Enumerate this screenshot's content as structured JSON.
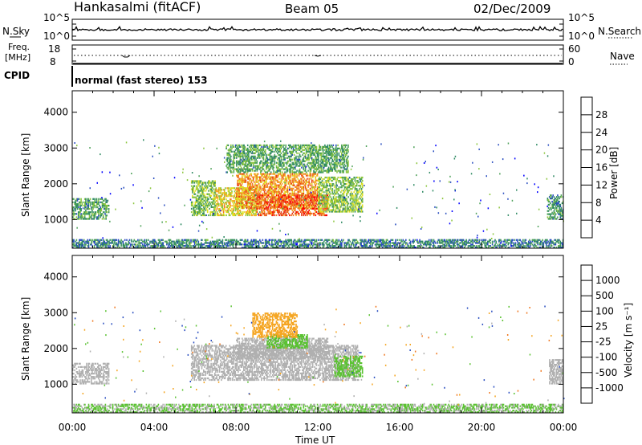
{
  "header": {
    "station": "Hankasalmi (fitACF)",
    "beam": "Beam 05",
    "date": "02/Dec/2009"
  },
  "noise_panel": {
    "left_label": "N.Sky",
    "left_ticks": [
      "10^5",
      "10^0"
    ],
    "right_ticks": [
      "10^5",
      "10^0"
    ],
    "right_label": "N.Search"
  },
  "freq_panel": {
    "left_label_1": "Freq.",
    "left_label_2": "[MHz]",
    "left_ticks": [
      "18",
      "8"
    ],
    "right_ticks": [
      "60",
      "0"
    ],
    "right_label": "Nave"
  },
  "cpid_panel": {
    "label": "CPID",
    "text": "normal (fast stereo) 153"
  },
  "colors": {
    "power_scale": [
      "#0000ff",
      "#2a4ec0",
      "#2f8a63",
      "#4fa25a",
      "#8cc63e",
      "#e0e020",
      "#f5a623",
      "#f07820",
      "#e84018",
      "#ff0000"
    ],
    "velocity_scale": [
      "#ff0000",
      "#e84018",
      "#f07820",
      "#f5a623",
      "#bcbcbc",
      "#bcbcbc",
      "#5bc232",
      "#2f8a63",
      "#2a4ec0",
      "#0000ff"
    ],
    "ground_scatter": "#b0b0b0"
  },
  "chart_data": [
    {
      "type": "heatmap",
      "name": "power",
      "title": "",
      "xlabel": "",
      "ylabel": "Slant Range [km]",
      "xlim": [
        0,
        24
      ],
      "ylim": [
        200,
        4600
      ],
      "yticks": [
        "1000",
        "2000",
        "3000",
        "4000"
      ],
      "xticks": [
        "00:00",
        "04:00",
        "08:00",
        "12:00",
        "16:00",
        "20:00",
        "00:00"
      ],
      "colorbar": {
        "label": "Power [dB]",
        "range": [
          0,
          32
        ],
        "ticks": [
          "4",
          "8",
          "12",
          "16",
          "20",
          "24",
          "28"
        ]
      },
      "regions": [
        {
          "t0": 0.0,
          "t1": 1.8,
          "r0": 1000,
          "r1": 1600,
          "v": 10
        },
        {
          "t0": 5.8,
          "t1": 7.0,
          "r0": 1100,
          "r1": 2100,
          "v": 13
        },
        {
          "t0": 7.0,
          "t1": 9.0,
          "r0": 1100,
          "r1": 1900,
          "v": 18
        },
        {
          "t0": 8.0,
          "t1": 12.0,
          "r0": 1300,
          "r1": 2300,
          "v": 22
        },
        {
          "t0": 9.0,
          "t1": 12.5,
          "r0": 1100,
          "r1": 1700,
          "v": 26
        },
        {
          "t0": 12.0,
          "t1": 14.2,
          "r0": 1200,
          "r1": 2200,
          "v": 14
        },
        {
          "t0": 7.5,
          "t1": 13.5,
          "r0": 2300,
          "r1": 3100,
          "v": 11
        },
        {
          "t0": 23.2,
          "t1": 24.0,
          "r0": 1000,
          "r1": 1700,
          "v": 9
        },
        {
          "t0": 0.0,
          "t1": 24.0,
          "r0": 200,
          "r1": 450,
          "v": 8
        }
      ]
    },
    {
      "type": "heatmap",
      "name": "velocity",
      "title": "",
      "xlabel": "Time UT",
      "ylabel": "Slant Range [km]",
      "xlim": [
        0,
        24
      ],
      "ylim": [
        200,
        4600
      ],
      "yticks": [
        "1000",
        "2000",
        "3000",
        "4000"
      ],
      "xticks": [
        "00:00",
        "04:00",
        "08:00",
        "12:00",
        "16:00",
        "20:00",
        "00:00"
      ],
      "colorbar": {
        "label": "Velocity [m s⁻¹]",
        "ticks": [
          "1000",
          "500",
          "100",
          "25",
          "-25",
          "-100",
          "-500",
          "-1000"
        ]
      },
      "regions": [
        {
          "t0": 0.0,
          "t1": 1.8,
          "r0": 1000,
          "r1": 1600,
          "v": 0
        },
        {
          "t0": 5.8,
          "t1": 14.0,
          "r0": 1100,
          "r1": 2100,
          "v": 0
        },
        {
          "t0": 8.0,
          "t1": 12.5,
          "r0": 1700,
          "r1": 2300,
          "v": 0
        },
        {
          "t0": 12.8,
          "t1": 14.2,
          "r0": 1200,
          "r1": 1800,
          "v": 60
        },
        {
          "t0": 9.5,
          "t1": 11.5,
          "r0": 2000,
          "r1": 2400,
          "v": 80
        },
        {
          "t0": 8.8,
          "t1": 11.0,
          "r0": 2300,
          "r1": 3000,
          "v": -80
        },
        {
          "t0": 23.3,
          "t1": 24.0,
          "r0": 1000,
          "r1": 1700,
          "v": 0
        },
        {
          "t0": 0.0,
          "t1": 24.0,
          "r0": 200,
          "r1": 450,
          "v": 30
        }
      ]
    }
  ]
}
